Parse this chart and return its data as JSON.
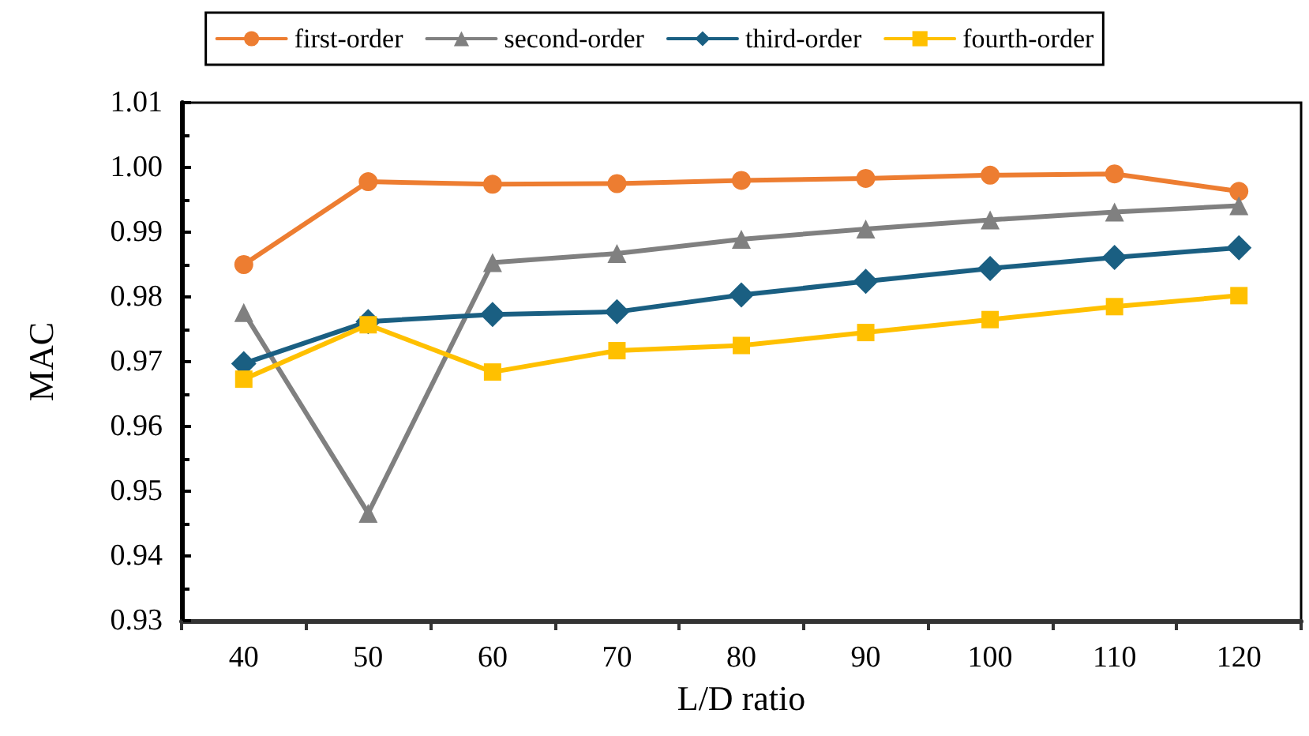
{
  "chart_data": {
    "type": "line",
    "xlabel": "L/D ratio",
    "ylabel": "MAC",
    "categories": [
      "40",
      "50",
      "60",
      "70",
      "80",
      "90",
      "100",
      "110",
      "120"
    ],
    "series": [
      {
        "name": "first-order",
        "color": "#ed7d31",
        "marker": "circle",
        "values": [
          0.985,
          0.9978,
          0.9974,
          0.9975,
          0.998,
          0.9983,
          0.9988,
          0.999,
          0.9963
        ]
      },
      {
        "name": "second-order",
        "color": "#808080",
        "marker": "triangle",
        "values": [
          0.9776,
          0.9466,
          0.9853,
          0.9867,
          0.9889,
          0.9905,
          0.9919,
          0.9931,
          0.9941
        ]
      },
      {
        "name": "third-order",
        "color": "#1a5f82",
        "marker": "diamond",
        "values": [
          0.9697,
          0.9762,
          0.9773,
          0.9777,
          0.9803,
          0.9824,
          0.9844,
          0.9861,
          0.9876
        ]
      },
      {
        "name": "fourth-order",
        "color": "#ffc000",
        "marker": "square",
        "values": [
          0.9673,
          0.9757,
          0.9684,
          0.9717,
          0.9725,
          0.9745,
          0.9765,
          0.9785,
          0.9802
        ]
      }
    ],
    "ylim": [
      0.93,
      1.01
    ],
    "yticks": [
      0.93,
      0.94,
      0.95,
      0.96,
      0.97,
      0.98,
      0.99,
      {
        "value": 1,
        "label": "1.00"
      },
      1.01
    ],
    "grid": false,
    "legend": "top",
    "line_style": "solid"
  }
}
